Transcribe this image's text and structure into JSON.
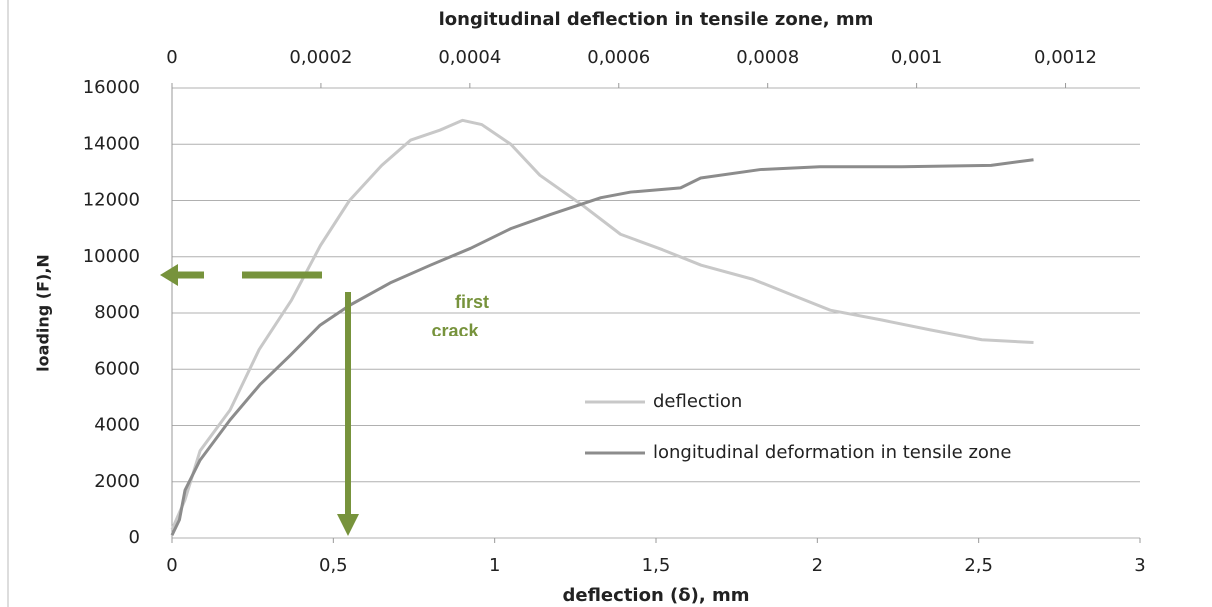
{
  "chart_data": {
    "type": "line",
    "x2label": "longitudinal deflection in tensile zone, mm",
    "xlabel": "deflection (δ), mm",
    "ylabel": "loading (F),N",
    "annotations": [
      "first",
      "crack"
    ],
    "xlim": [
      0,
      3
    ],
    "xticks": [
      0,
      {
        "value": 0.5,
        "label": "0,5"
      },
      1,
      {
        "value": 1.5,
        "label": "1,5"
      },
      2,
      {
        "value": 2.5,
        "label": "2,5"
      },
      3
    ],
    "x2lim": [
      0,
      0.0013
    ],
    "x2ticks": [
      0,
      {
        "value": 0.0002,
        "label": "0,0002"
      },
      {
        "value": 0.0004,
        "label": "0,0004"
      },
      {
        "value": 0.0006,
        "label": "0,0006"
      },
      {
        "value": 0.0008,
        "label": "0,0008"
      },
      {
        "value": 0.001,
        "label": "0,001"
      },
      {
        "value": 0.0012,
        "label": "0,0012"
      }
    ],
    "ylim": [
      0,
      16000
    ],
    "yticks": [
      0,
      2000,
      4000,
      6000,
      8000,
      10000,
      12000,
      14000,
      16000
    ],
    "grid": true,
    "series": [
      {
        "name": "deflection",
        "color": "#c8c8c8",
        "xaxis": "x",
        "x": [
          0,
          0.04,
          0.087,
          0.18,
          0.27,
          0.37,
          0.46,
          0.55,
          0.65,
          0.74,
          0.83,
          0.9,
          0.96,
          1.05,
          1.14,
          1.27,
          1.39,
          1.52,
          1.64,
          1.8,
          1.92,
          2.04,
          2.2,
          2.35,
          2.51,
          2.67
        ],
        "values": [
          300,
          1350,
          3100,
          4550,
          6700,
          8450,
          10400,
          12000,
          13250,
          14150,
          14500,
          14850,
          14700,
          14000,
          12900,
          11850,
          10800,
          10250,
          9700,
          9200,
          8650,
          8100,
          7750,
          7400,
          7050,
          6950
        ]
      },
      {
        "name": "longitudinal deformation in tensile zone",
        "color": "#8c8c8c",
        "xaxis": "x2",
        "x": [
          0,
          1e-05,
          1.75e-05,
          3.77e-05,
          7.8e-05,
          0.000118,
          0.000159,
          0.000199,
          0.000239,
          0.000293,
          0.000347,
          0.000401,
          0.000455,
          0.000508,
          0.000576,
          0.000616,
          0.000683,
          0.00071,
          0.00079,
          0.00087,
          0.00098,
          0.0011,
          0.001157
        ],
        "values": [
          100,
          650,
          1700,
          2770,
          4200,
          5450,
          6500,
          7570,
          8280,
          9070,
          9700,
          10300,
          11000,
          11500,
          12100,
          12300,
          12450,
          12800,
          13100,
          13200,
          13200,
          13250,
          13450
        ]
      }
    ]
  }
}
